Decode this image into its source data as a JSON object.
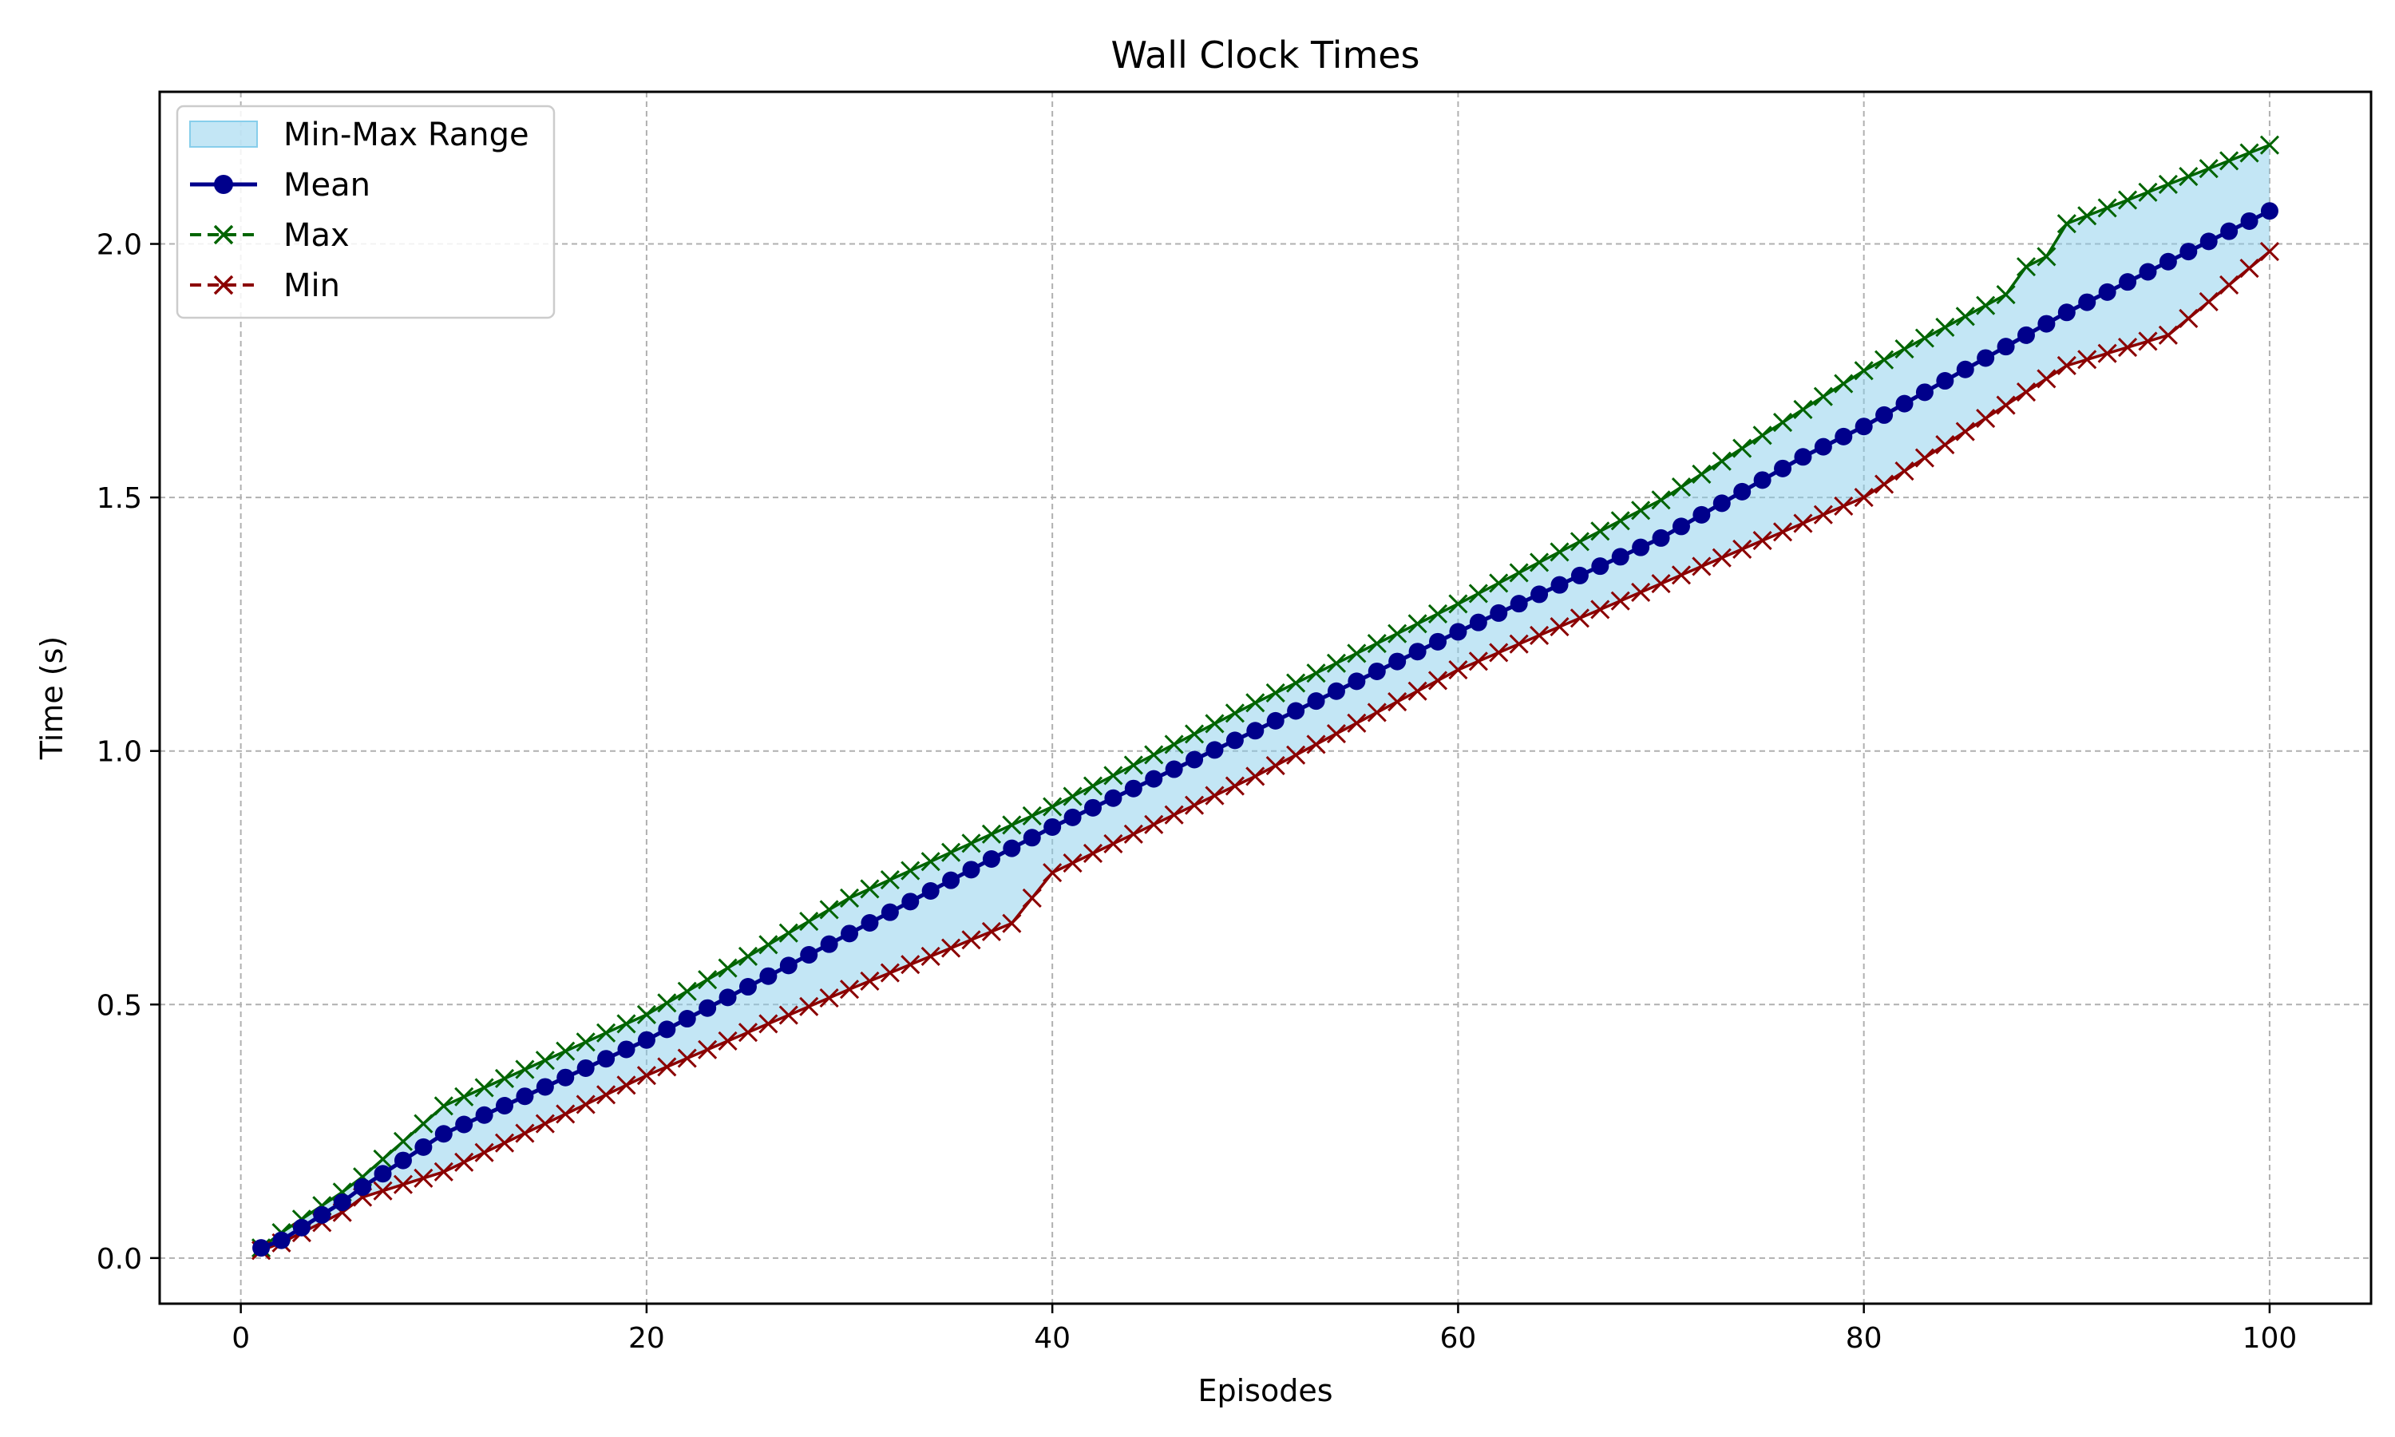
{
  "chart_data": {
    "type": "line",
    "title": "Wall Clock Times",
    "xlabel": "Episodes",
    "ylabel": "Time (s)",
    "xlim": [
      -4,
      105
    ],
    "ylim": [
      -0.09,
      2.3
    ],
    "xticks": [
      0,
      20,
      40,
      60,
      80,
      100
    ],
    "yticks": [
      0.0,
      0.5,
      1.0,
      1.5,
      2.0
    ],
    "xtick_labels": [
      "0",
      "20",
      "40",
      "60",
      "80",
      "100"
    ],
    "ytick_labels": [
      "0.0",
      "0.5",
      "1.0",
      "1.5",
      "2.0"
    ],
    "grid": true,
    "legend_position": "top-left",
    "x_start": 1,
    "x_end": 100,
    "anchors": {
      "mean": [
        [
          1,
          0.02
        ],
        [
          2,
          0.035
        ],
        [
          5,
          0.11
        ],
        [
          6,
          0.14
        ],
        [
          10,
          0.245
        ],
        [
          20,
          0.43
        ],
        [
          30,
          0.64
        ],
        [
          40,
          0.85
        ],
        [
          50,
          1.04
        ],
        [
          60,
          1.235
        ],
        [
          70,
          1.42
        ],
        [
          77,
          1.58
        ],
        [
          80,
          1.64
        ],
        [
          90,
          1.865
        ],
        [
          100,
          2.065
        ]
      ],
      "max": [
        [
          1,
          0.02
        ],
        [
          2,
          0.05
        ],
        [
          5,
          0.13
        ],
        [
          6,
          0.16
        ],
        [
          10,
          0.3
        ],
        [
          20,
          0.48
        ],
        [
          30,
          0.71
        ],
        [
          40,
          0.89
        ],
        [
          50,
          1.095
        ],
        [
          60,
          1.29
        ],
        [
          70,
          1.495
        ],
        [
          80,
          1.75
        ],
        [
          87,
          1.9
        ],
        [
          88,
          1.955
        ],
        [
          89,
          1.975
        ],
        [
          90,
          2.04
        ],
        [
          100,
          2.195
        ]
      ],
      "min": [
        [
          1,
          0.015
        ],
        [
          2,
          0.03
        ],
        [
          5,
          0.09
        ],
        [
          6,
          0.12
        ],
        [
          10,
          0.17
        ],
        [
          20,
          0.36
        ],
        [
          30,
          0.53
        ],
        [
          38,
          0.66
        ],
        [
          40,
          0.76
        ],
        [
          50,
          0.95
        ],
        [
          60,
          1.16
        ],
        [
          70,
          1.33
        ],
        [
          80,
          1.5
        ],
        [
          90,
          1.76
        ],
        [
          95,
          1.82
        ],
        [
          100,
          1.985
        ]
      ]
    },
    "series": [
      {
        "name": "Mean",
        "key": "mean",
        "color": "#00008b",
        "line": "solid",
        "marker": "circle"
      },
      {
        "name": "Max",
        "key": "max",
        "color": "#006400",
        "line": "solid",
        "marker": "x"
      },
      {
        "name": "Min",
        "key": "min",
        "color": "#8b0000",
        "line": "solid",
        "marker": "x"
      }
    ],
    "band": {
      "name": "Min-Max Range",
      "color": "#87ceeb",
      "opacity": 0.5
    },
    "legend": [
      {
        "label": "Min-Max Range",
        "kind": "band"
      },
      {
        "label": "Mean",
        "kind": "mean"
      },
      {
        "label": "Max",
        "kind": "max"
      },
      {
        "label": "Min",
        "kind": "min"
      }
    ]
  }
}
